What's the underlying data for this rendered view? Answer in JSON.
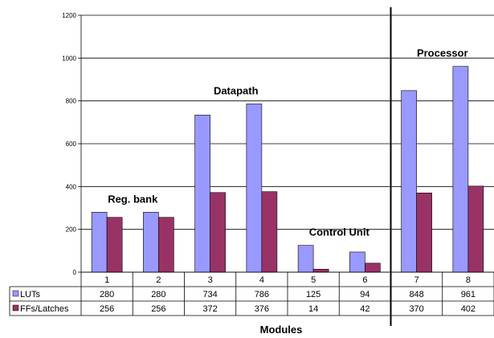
{
  "chart_data": {
    "type": "bar",
    "categories": [
      "1",
      "2",
      "3",
      "4",
      "5",
      "6",
      "7",
      "8"
    ],
    "series": [
      {
        "name": "LUTs",
        "color": "#9999ff",
        "values": [
          280,
          280,
          734,
          786,
          125,
          94,
          848,
          961
        ]
      },
      {
        "name": "FFs/Latches",
        "color": "#993366",
        "values": [
          256,
          256,
          372,
          376,
          14,
          42,
          370,
          402
        ]
      }
    ],
    "ylim": [
      0,
      1200
    ],
    "yticks": [
      0,
      200,
      400,
      600,
      800,
      1000,
      1200
    ],
    "grid": true,
    "legend": "data-table",
    "xlabel": "Modules",
    "annotations": [
      {
        "text": "Reg. bank",
        "categories": [
          "1",
          "2"
        ]
      },
      {
        "text": "Datapath",
        "categories": [
          "3",
          "4"
        ]
      },
      {
        "text": "Control Unit",
        "categories": [
          "5",
          "6"
        ]
      },
      {
        "text": "Processor",
        "categories": [
          "7",
          "8"
        ]
      }
    ],
    "separator_between": [
      "6",
      "7"
    ]
  }
}
